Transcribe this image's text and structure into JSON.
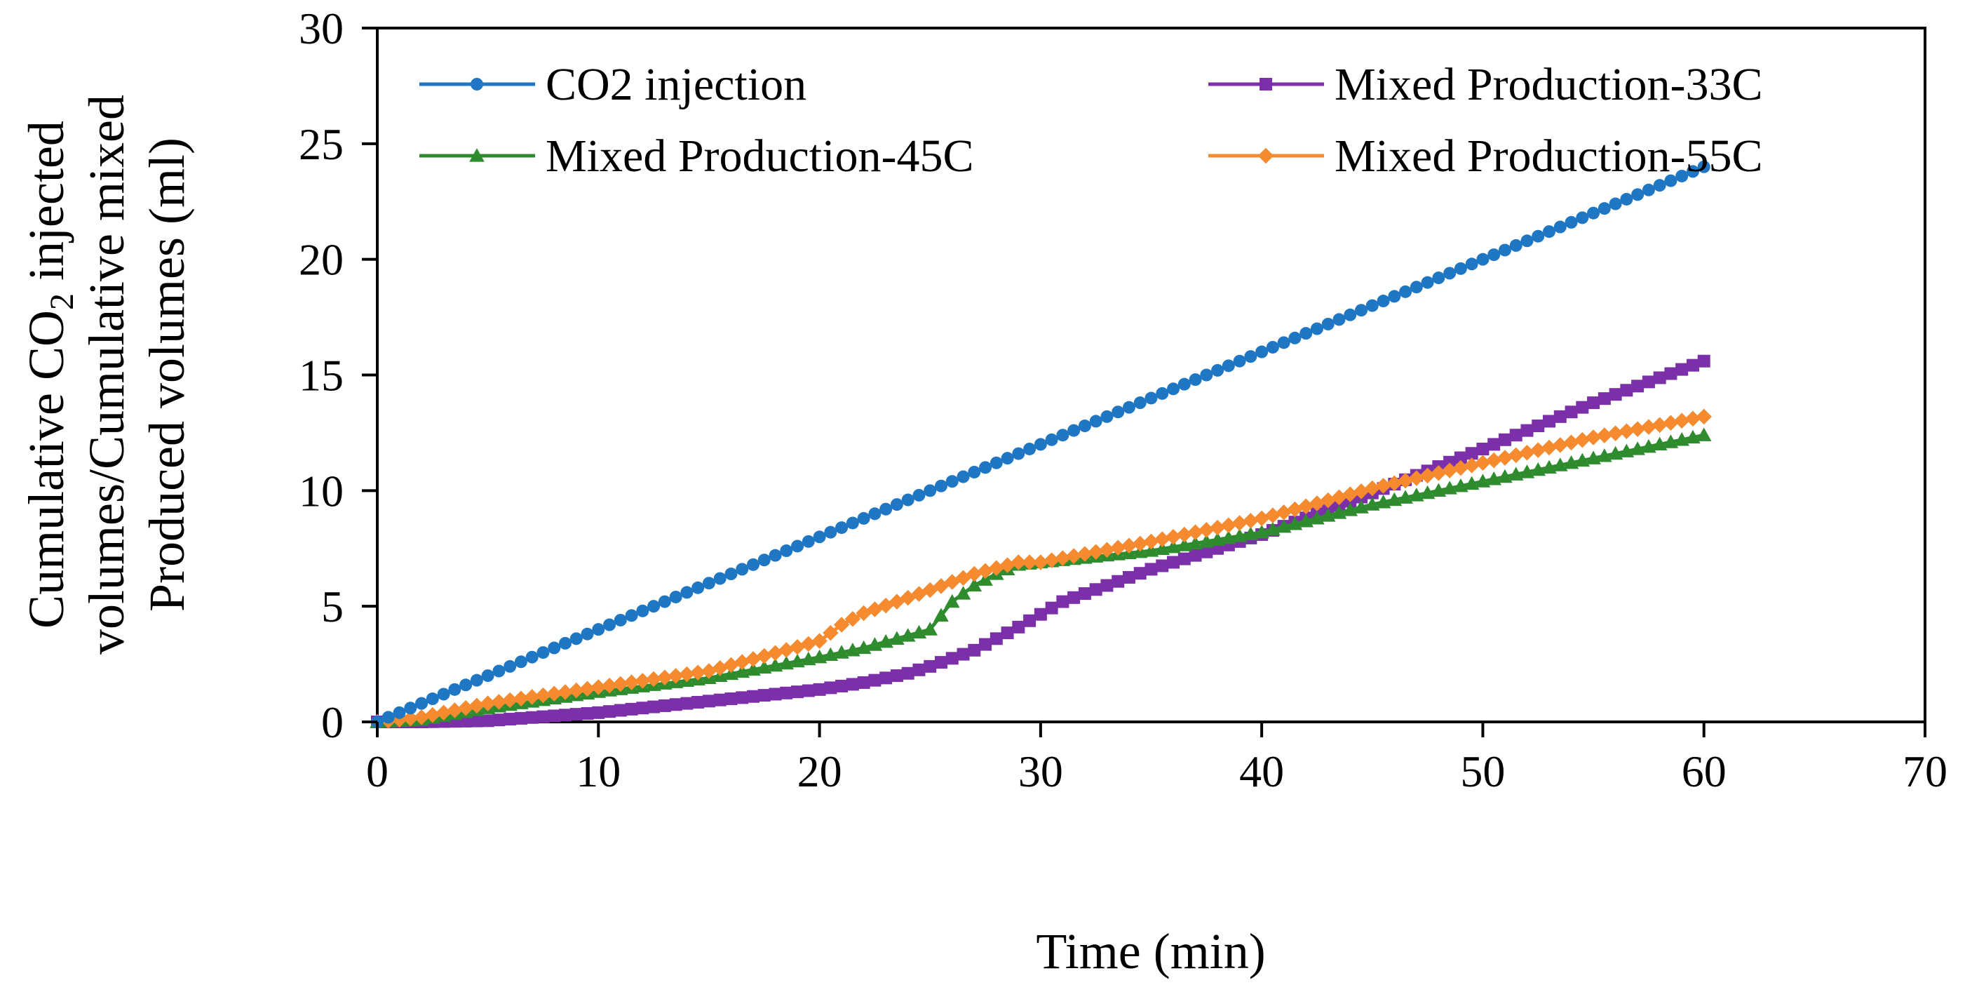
{
  "chart_data": {
    "type": "line",
    "title": "",
    "xlabel": "Time (min)",
    "ylabel_parts": {
      "line1_before": "Cumulative CO",
      "line1_sub": "2",
      "line1_after": " injected",
      "line2": "volumes/Cumulative mixed",
      "line3": "Produced volumes (ml)"
    },
    "xlim": [
      0,
      70
    ],
    "ylim": [
      0,
      30
    ],
    "x_ticks": [
      0,
      10,
      20,
      30,
      40,
      50,
      60,
      70
    ],
    "y_ticks": [
      0,
      5,
      10,
      15,
      20,
      25,
      30
    ],
    "grid": false,
    "legend_position": "top",
    "series": [
      {
        "name": "CO2 injection",
        "color": "#1F77C4",
        "marker": "circle",
        "x": [
          0,
          60
        ],
        "y": [
          0,
          24
        ]
      },
      {
        "name": "Mixed Production-33C",
        "color": "#7B2FA8",
        "marker": "square",
        "x": [
          0,
          2,
          5,
          10,
          15,
          20,
          22,
          24,
          25,
          27,
          29,
          31,
          35,
          40,
          45,
          50,
          55,
          60
        ],
        "y": [
          0,
          0,
          0.05,
          0.4,
          0.9,
          1.4,
          1.7,
          2.1,
          2.4,
          3.1,
          4.1,
          5.2,
          6.6,
          8.1,
          9.9,
          11.8,
          13.8,
          15.6
        ]
      },
      {
        "name": "Mixed Production-45C",
        "color": "#2E8B2E",
        "marker": "triangle",
        "x": [
          0,
          2,
          5,
          10,
          15,
          20,
          22,
          25,
          26,
          27,
          28,
          29,
          30,
          35,
          40,
          45,
          50,
          55,
          60
        ],
        "y": [
          0,
          0.1,
          0.6,
          1.3,
          1.9,
          2.8,
          3.2,
          4.0,
          5.2,
          5.9,
          6.4,
          6.8,
          6.9,
          7.4,
          8.2,
          9.4,
          10.4,
          11.4,
          12.4
        ]
      },
      {
        "name": "Mixed Production-55C",
        "color": "#F58A2E",
        "marker": "diamond",
        "x": [
          0,
          2,
          5,
          10,
          15,
          20,
          21,
          22,
          25,
          27,
          29,
          30,
          35,
          40,
          45,
          50,
          55,
          60
        ],
        "y": [
          0,
          0.2,
          0.8,
          1.5,
          2.2,
          3.5,
          4.2,
          4.7,
          5.7,
          6.4,
          6.9,
          6.9,
          7.8,
          8.8,
          10.1,
          11.2,
          12.3,
          13.2
        ]
      }
    ]
  }
}
